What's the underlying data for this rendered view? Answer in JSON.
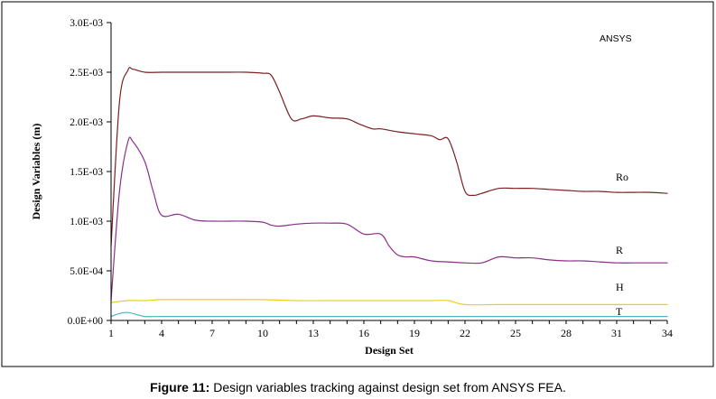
{
  "chart_data": {
    "type": "line",
    "xlabel": "Design Set",
    "ylabel": "Design Variables (m)",
    "x_ticks": [
      1,
      4,
      7,
      10,
      13,
      16,
      19,
      22,
      25,
      28,
      31,
      34
    ],
    "y_ticks": [
      {
        "value": 0.0,
        "label": "0.0E+00"
      },
      {
        "value": 0.0005,
        "label": "5.0E-04"
      },
      {
        "value": 0.001,
        "label": "1.0E-03"
      },
      {
        "value": 0.0015,
        "label": "1.5E-03"
      },
      {
        "value": 0.002,
        "label": "2.0E-03"
      },
      {
        "value": 0.0025,
        "label": "2.5E-03"
      },
      {
        "value": 0.003,
        "label": "3.0E-03"
      }
    ],
    "xlim": [
      1,
      34
    ],
    "ylim": [
      0,
      0.003
    ],
    "annotation": "ANSYS",
    "series": [
      {
        "name": "Ro",
        "color": "#7a2020",
        "x": [
          1,
          1.5,
          2,
          2.3,
          3,
          4,
          5,
          6,
          7,
          8,
          9,
          10,
          10.5,
          11,
          11.7,
          12.3,
          13,
          14,
          15,
          15.7,
          16.5,
          17,
          18,
          19,
          20,
          20.5,
          21,
          21.5,
          22,
          22.5,
          23,
          24,
          25,
          26,
          27,
          28,
          29,
          30,
          31,
          32,
          33,
          34
        ],
        "values": [
          0.00075,
          0.0022,
          0.00252,
          0.00253,
          0.0025,
          0.0025,
          0.0025,
          0.0025,
          0.0025,
          0.0025,
          0.0025,
          0.00249,
          0.00247,
          0.0023,
          0.00203,
          0.00203,
          0.00206,
          0.00204,
          0.00203,
          0.00198,
          0.00193,
          0.00193,
          0.0019,
          0.00188,
          0.00186,
          0.00182,
          0.00183,
          0.0016,
          0.0013,
          0.00126,
          0.00128,
          0.00133,
          0.00133,
          0.00133,
          0.00132,
          0.00131,
          0.0013,
          0.0013,
          0.00129,
          0.00129,
          0.00129,
          0.00128
        ]
      },
      {
        "name": "R",
        "color": "#8a2f8a",
        "x": [
          1,
          1.5,
          2,
          2.3,
          3,
          3.5,
          4,
          5,
          6,
          7,
          8,
          9,
          10,
          10.5,
          11,
          12,
          13,
          14,
          15,
          16,
          17,
          17.5,
          18,
          18.5,
          19,
          20,
          21,
          22,
          23,
          24,
          25,
          26,
          27,
          28,
          29,
          30,
          31,
          32,
          33,
          34
        ],
        "values": [
          0.0002,
          0.0013,
          0.0018,
          0.0018,
          0.0016,
          0.0013,
          0.00106,
          0.00107,
          0.00101,
          0.001,
          0.001,
          0.001,
          0.00099,
          0.00096,
          0.00095,
          0.00097,
          0.00098,
          0.00098,
          0.00097,
          0.00087,
          0.00087,
          0.00075,
          0.00066,
          0.00064,
          0.00064,
          0.0006,
          0.00059,
          0.00058,
          0.00058,
          0.00064,
          0.00063,
          0.00063,
          0.00061,
          0.0006,
          0.0006,
          0.00059,
          0.00058,
          0.00058,
          0.00058,
          0.00058
        ]
      },
      {
        "name": "H",
        "color": "#e8d020",
        "x": [
          1,
          2,
          3,
          4,
          6,
          8,
          10,
          12,
          14,
          16,
          18,
          20,
          21,
          22,
          24,
          26,
          28,
          30,
          32,
          34
        ],
        "values": [
          0.00018,
          0.0002,
          0.0002,
          0.00021,
          0.00021,
          0.00021,
          0.00021,
          0.0002,
          0.0002,
          0.0002,
          0.0002,
          0.0002,
          0.0002,
          0.00016,
          0.00016,
          0.00016,
          0.00016,
          0.00016,
          0.00016,
          0.00016
        ]
      },
      {
        "name": "T",
        "color": "#4fb5c0",
        "x": [
          1,
          1.5,
          2,
          2.5,
          3,
          4,
          6,
          8,
          10,
          14,
          18,
          22,
          26,
          30,
          34
        ],
        "values": [
          4e-05,
          7e-05,
          8e-05,
          6e-05,
          4e-05,
          4e-05,
          4e-05,
          4e-05,
          4e-05,
          4e-05,
          4e-05,
          4e-05,
          4e-05,
          4e-05,
          4e-05
        ]
      }
    ]
  },
  "caption": {
    "prefix": "Figure 11:",
    "text": " Design variables tracking against design set from ANSYS FEA."
  }
}
